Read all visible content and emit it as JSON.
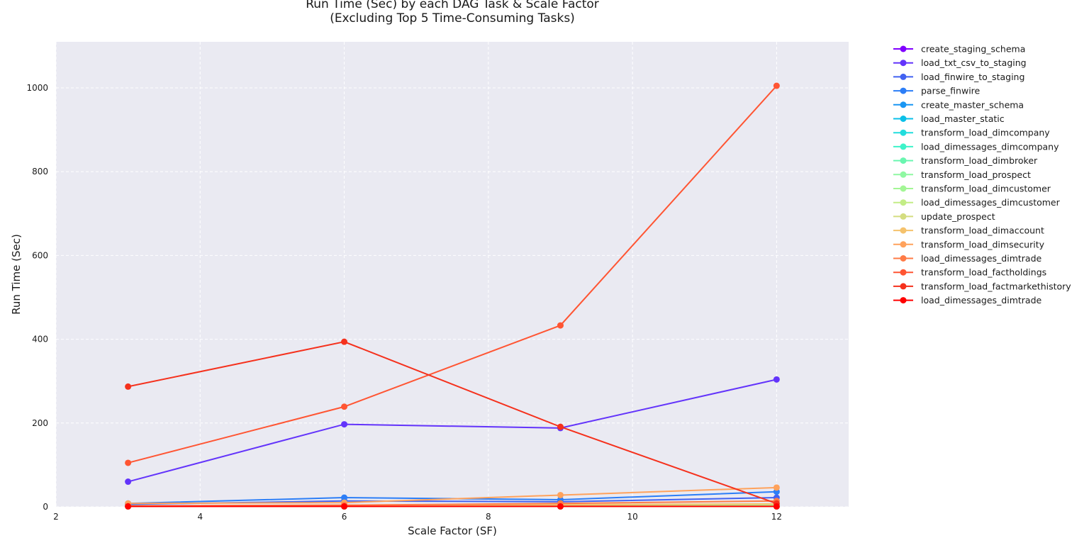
{
  "chart_data": {
    "type": "line",
    "title_line1": "Run Time (Sec) by each DAG Task & Scale Factor",
    "title_line2": "(Excluding Top 5 Time-Consuming Tasks)",
    "xlabel": "Scale Factor (SF)",
    "ylabel": "Run Time (Sec)",
    "xlim": [
      2,
      13
    ],
    "ylim": [
      0,
      1110
    ],
    "xticks": [
      2,
      4,
      6,
      8,
      10,
      12
    ],
    "yticks": [
      0,
      200,
      400,
      600,
      800,
      1000
    ],
    "grid": true,
    "legend_position": "outside-right",
    "plot_background": "#eaeaf2",
    "x": [
      3,
      6,
      9,
      12
    ],
    "series": [
      {
        "name": "create_staging_schema",
        "color": "#8000ff",
        "values": [
          1,
          1,
          1,
          1
        ]
      },
      {
        "name": "load_txt_csv_to_staging",
        "color": "#6334fb",
        "values": [
          60,
          197,
          188,
          304
        ]
      },
      {
        "name": "load_finwire_to_staging",
        "color": "#4262f1",
        "values": [
          6,
          14,
          12,
          22
        ]
      },
      {
        "name": "parse_finwire",
        "color": "#2c7ef7",
        "values": [
          8,
          22,
          17,
          36
        ]
      },
      {
        "name": "create_master_schema",
        "color": "#1996f3",
        "values": [
          1,
          1,
          1,
          1
        ]
      },
      {
        "name": "load_master_static",
        "color": "#0bc0e8",
        "values": [
          2,
          2,
          2,
          2
        ]
      },
      {
        "name": "transform_load_dimcompany",
        "color": "#22dddd",
        "values": [
          2,
          3,
          3,
          4
        ]
      },
      {
        "name": "load_dimessages_dimcompany",
        "color": "#3ef3c9",
        "values": [
          1,
          1,
          1,
          1
        ]
      },
      {
        "name": "transform_load_dimbroker",
        "color": "#6af6b0",
        "values": [
          1,
          1,
          1,
          1
        ]
      },
      {
        "name": "transform_load_prospect",
        "color": "#8ff8a2",
        "values": [
          2,
          3,
          3,
          4
        ]
      },
      {
        "name": "transform_load_dimcustomer",
        "color": "#a3f695",
        "values": [
          2,
          3,
          4,
          5
        ]
      },
      {
        "name": "load_dimessages_dimcustomer",
        "color": "#c3ed86",
        "values": [
          1,
          1,
          1,
          1
        ]
      },
      {
        "name": "update_prospect",
        "color": "#d4dd80",
        "values": [
          1,
          1,
          1,
          1
        ]
      },
      {
        "name": "transform_load_dimaccount",
        "color": "#f5c26c",
        "values": [
          2,
          4,
          5,
          7
        ]
      },
      {
        "name": "transform_load_dimsecurity",
        "color": "#ffa25c",
        "values": [
          8,
          10,
          28,
          46
        ]
      },
      {
        "name": "load_dimessages_dimtrade",
        "color": "#ff7b46",
        "values": [
          2,
          4,
          8,
          14
        ]
      },
      {
        "name": "transform_load_factholdings",
        "color": "#ff5533",
        "values": [
          105,
          239,
          433,
          1005
        ]
      },
      {
        "name": "transform_load_factmarkethistory",
        "color": "#f5311d",
        "values": [
          287,
          394,
          191,
          8
        ]
      },
      {
        "name": "load_dimessages_dimtrade",
        "color": "#ff0000",
        "values": [
          1,
          1,
          1,
          1
        ]
      }
    ]
  }
}
